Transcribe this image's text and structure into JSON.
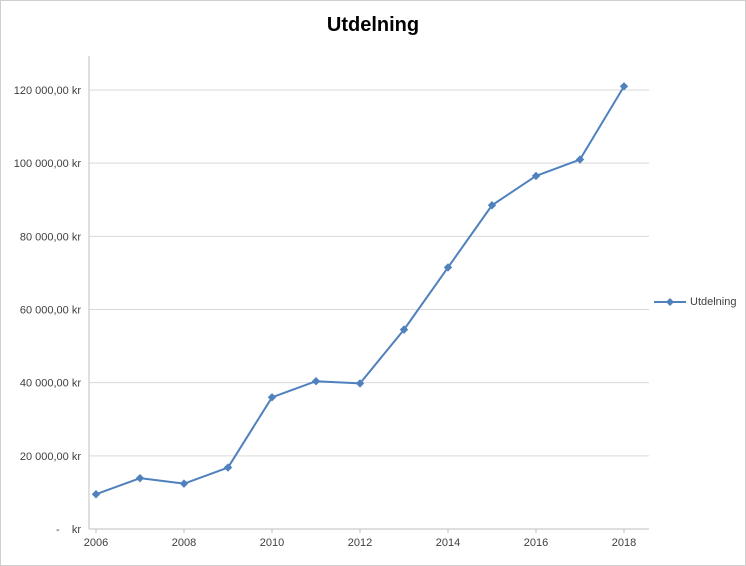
{
  "chart_data": {
    "type": "line",
    "title": "Utdelning",
    "x": [
      2006,
      2007,
      2008,
      2009,
      2010,
      2011,
      2012,
      2013,
      2014,
      2015,
      2016,
      2017,
      2018
    ],
    "series": [
      {
        "name": "Utdelning",
        "values": [
          9500,
          13900,
          12400,
          16800,
          36000,
          40400,
          39800,
          54500,
          71500,
          88500,
          96500,
          101000,
          121000
        ]
      }
    ],
    "xtick_labels": [
      "2006",
      "2008",
      "2010",
      "2012",
      "2014",
      "2016",
      "2018"
    ],
    "ytick_labels": [
      "-    kr",
      "20 000,00 kr",
      "40 000,00 kr",
      "60 000,00 kr",
      "80 000,00 kr",
      "100 000,00 kr",
      "120 000,00 kr"
    ],
    "ylim": [
      0,
      120000
    ],
    "ytick_step": 20000,
    "grid": true,
    "legend": {
      "position": "right",
      "label": "Utdelning"
    },
    "colors": {
      "line": "#4f81bd",
      "gridline": "#d9d9d9",
      "axis": "#bfbfbf",
      "text": "#404040"
    }
  }
}
